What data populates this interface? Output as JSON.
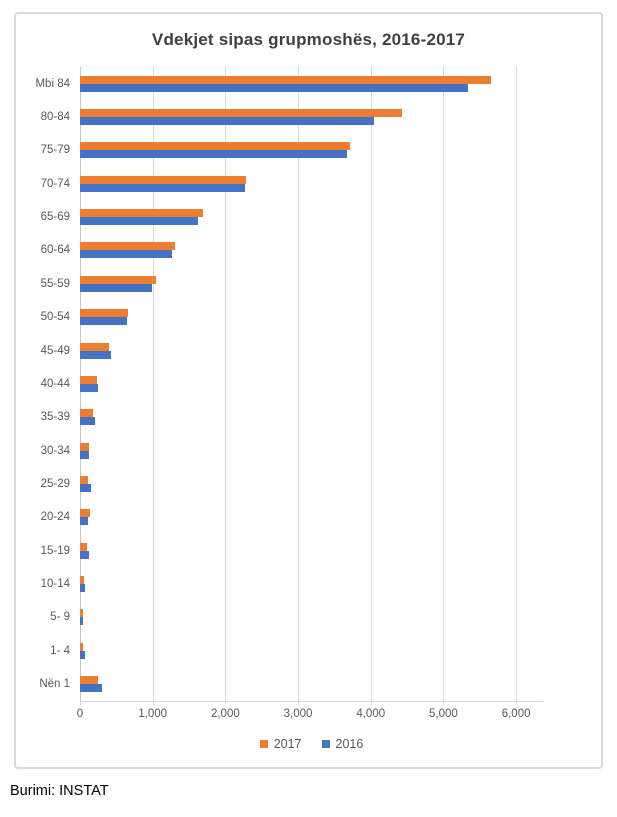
{
  "chart_data": {
    "type": "bar",
    "orientation": "horizontal",
    "title": "Vdekjet sipas grupmoshës, 2016-2017",
    "categories": [
      "Mbi 84",
      "80-84",
      "75-79",
      "70-74",
      "65-69",
      "60-64",
      "55-59",
      "50-54",
      "45-49",
      "40-44",
      "35-39",
      "30-34",
      "25-29",
      "20-24",
      "15-19",
      "10-14",
      "5- 9",
      "1- 4",
      "Nën 1"
    ],
    "series": [
      {
        "name": "2017",
        "color": "#ED7D31",
        "values": [
          5660,
          4430,
          3720,
          2280,
          1690,
          1310,
          1040,
          665,
          400,
          230,
          180,
          125,
          105,
          135,
          90,
          60,
          35,
          45,
          250
        ]
      },
      {
        "name": "2016",
        "color": "#4472C4",
        "values": [
          5340,
          4050,
          3680,
          2265,
          1630,
          1270,
          990,
          640,
          430,
          250,
          200,
          125,
          150,
          115,
          125,
          65,
          40,
          65,
          300
        ]
      }
    ],
    "x_ticks": [
      "0",
      "1,000",
      "2,000",
      "3,000",
      "4,000",
      "5,000",
      "6,000"
    ],
    "x_tick_values": [
      0,
      1000,
      2000,
      3000,
      4000,
      5000,
      6000
    ],
    "x_max": 6370,
    "grid": true,
    "legend_position": "bottom"
  },
  "colors": {
    "grid": "#D9D9D9",
    "axis_text": "#595959",
    "title_text": "#404040",
    "frame_border": "#D9D9D9"
  },
  "source_note": "Burimi: INSTAT"
}
